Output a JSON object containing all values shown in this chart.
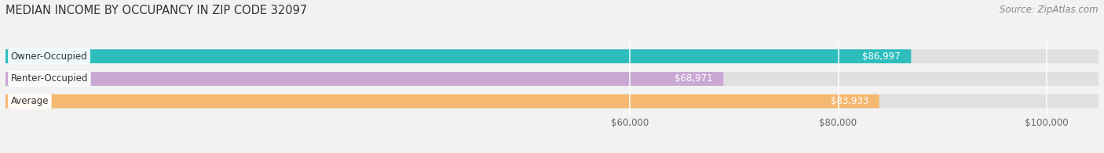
{
  "title": "MEDIAN INCOME BY OCCUPANCY IN ZIP CODE 32097",
  "source": "Source: ZipAtlas.com",
  "categories": [
    "Owner-Occupied",
    "Renter-Occupied",
    "Average"
  ],
  "values": [
    86997,
    68971,
    83933
  ],
  "bar_colors": [
    "#2dbdbd",
    "#c9a8d4",
    "#f5b870"
  ],
  "bar_labels": [
    "$86,997",
    "$68,971",
    "$83,933"
  ],
  "xmin": 0,
  "xmax": 105000,
  "xticks": [
    60000,
    80000,
    100000
  ],
  "xtick_labels": [
    "$60,000",
    "$80,000",
    "$100,000"
  ],
  "background_color": "#f2f2f2",
  "bar_background_color": "#e0e0e0",
  "title_fontsize": 10.5,
  "source_fontsize": 8.5,
  "label_fontsize": 8.5,
  "tick_fontsize": 8.5,
  "cat_fontsize": 8.5
}
